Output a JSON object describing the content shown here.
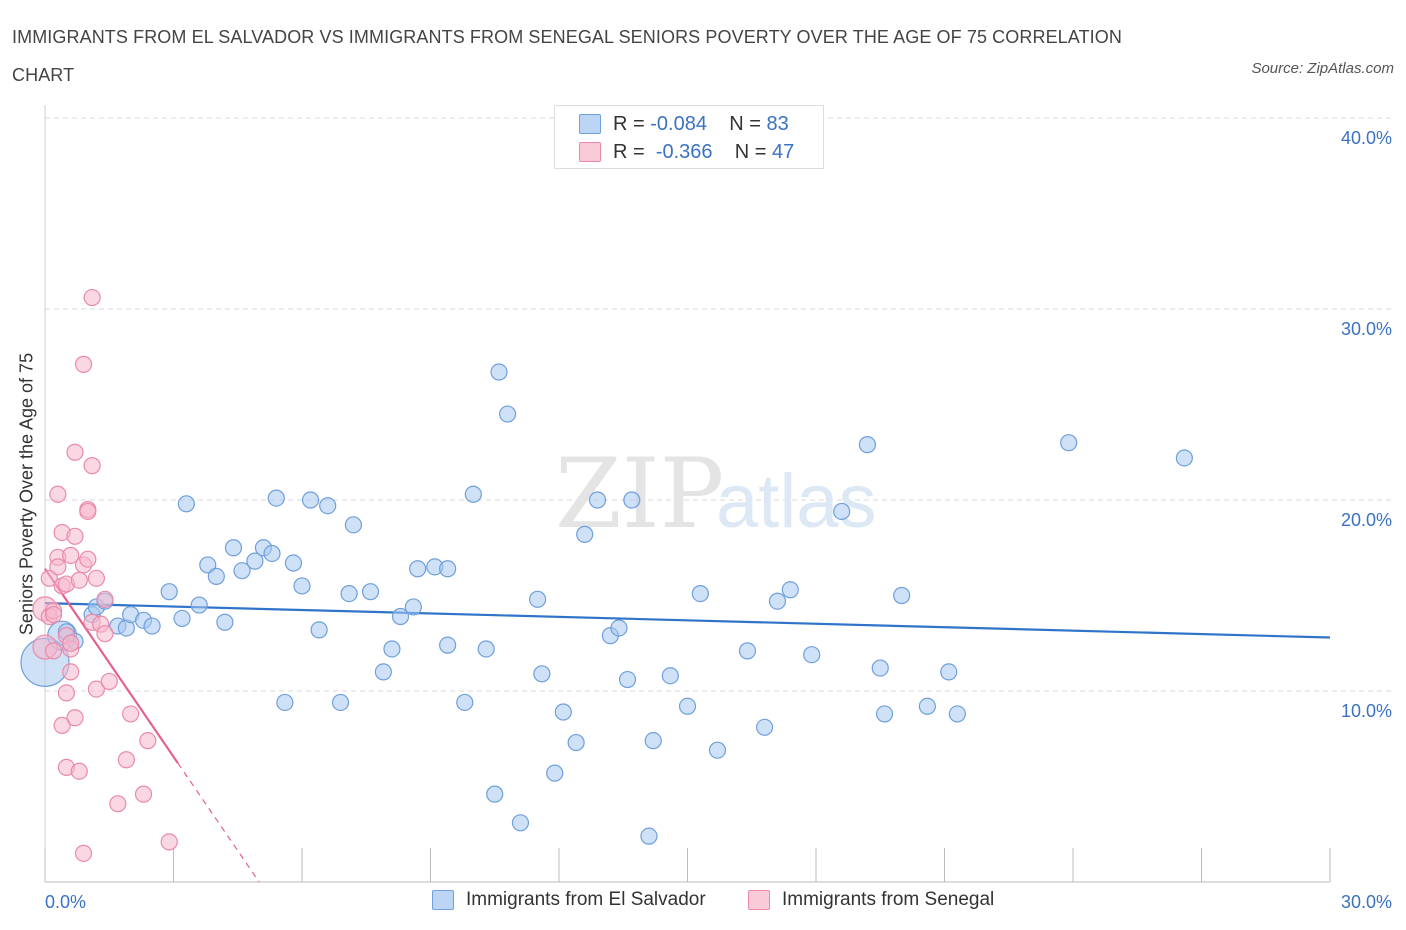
{
  "header": {
    "title": "IMMIGRANTS FROM EL SALVADOR VS IMMIGRANTS FROM SENEGAL SENIORS POVERTY OVER THE AGE OF 75 CORRELATION CHART",
    "source": "Source: ZipAtlas.com"
  },
  "legend_top": {
    "rows": [
      {
        "r_label": "R =",
        "r_value": "-0.084",
        "n_label": "N =",
        "n_value": "83"
      },
      {
        "r_label": "R =",
        "r_value": "-0.366",
        "n_label": "N =",
        "n_value": "47"
      }
    ]
  },
  "watermark": {
    "zip": "ZIP",
    "atlas": "atlas"
  },
  "colors": {
    "blue_fill": "#a8c8f0",
    "blue_stroke": "#6f9fdc",
    "blue_line": "#2f74c9",
    "pink_fill": "#f6b8cc",
    "pink_stroke": "#ea8aa9",
    "pink_line": "#e4618e",
    "axis_text": "#3a72c4",
    "grid": "#d8d8d8"
  },
  "chart_data": {
    "type": "scatter",
    "title": "IMMIGRANTS FROM EL SALVADOR VS IMMIGRANTS FROM SENEGAL SENIORS POVERTY OVER THE AGE OF 75 CORRELATION CHART",
    "xlabel": "",
    "ylabel": "Seniors Poverty Over the Age of 75",
    "xlim": [
      0,
      30
    ],
    "ylim": [
      0,
      40
    ],
    "x_tick_labels": [
      "0.0%",
      "30.0%"
    ],
    "y_tick_labels": [
      "10.0%",
      "20.0%",
      "30.0%",
      "40.0%"
    ],
    "y_ticks": [
      10,
      20,
      30,
      40
    ],
    "grid": true,
    "legend_position": "bottom",
    "series": [
      {
        "name": "Immigrants from El Salvador",
        "color": "#a8c8f0",
        "r": "-0.084",
        "n": "83",
        "trend": {
          "x1": 0.0,
          "y1": 14.6,
          "x2": 30.0,
          "y2": 12.8,
          "solid_to": 30.0
        },
        "points": [
          [
            0.0,
            11.5,
            3
          ],
          [
            0.4,
            12.9,
            1.8
          ],
          [
            0.5,
            13.1,
            1
          ],
          [
            0.7,
            12.6,
            1
          ],
          [
            1.1,
            14.0,
            1
          ],
          [
            1.2,
            14.4,
            1
          ],
          [
            1.4,
            14.7,
            1
          ],
          [
            1.7,
            13.4,
            1
          ],
          [
            1.9,
            13.3,
            1
          ],
          [
            2.0,
            14.0,
            1
          ],
          [
            2.3,
            13.7,
            1
          ],
          [
            2.5,
            13.4,
            1
          ],
          [
            2.9,
            15.2,
            1
          ],
          [
            3.2,
            13.8,
            1
          ],
          [
            3.3,
            19.8,
            1
          ],
          [
            3.6,
            14.5,
            1
          ],
          [
            3.8,
            16.6,
            1
          ],
          [
            4.0,
            16.0,
            1
          ],
          [
            4.2,
            13.6,
            1
          ],
          [
            4.4,
            17.5,
            1
          ],
          [
            4.6,
            16.3,
            1
          ],
          [
            4.9,
            16.8,
            1
          ],
          [
            5.1,
            17.5,
            1
          ],
          [
            5.3,
            17.2,
            1
          ],
          [
            5.4,
            20.1,
            1
          ],
          [
            5.6,
            9.4,
            1
          ],
          [
            5.8,
            16.7,
            1
          ],
          [
            6.0,
            15.5,
            1
          ],
          [
            6.2,
            20.0,
            1
          ],
          [
            6.4,
            13.2,
            1
          ],
          [
            6.6,
            19.7,
            1
          ],
          [
            6.9,
            9.4,
            1
          ],
          [
            7.1,
            15.1,
            1
          ],
          [
            7.2,
            18.7,
            1
          ],
          [
            7.6,
            15.2,
            1
          ],
          [
            7.9,
            11.0,
            1
          ],
          [
            8.1,
            12.2,
            1
          ],
          [
            8.3,
            13.9,
            1
          ],
          [
            8.6,
            14.4,
            1
          ],
          [
            8.7,
            16.4,
            1
          ],
          [
            9.1,
            16.5,
            1
          ],
          [
            9.4,
            16.4,
            1
          ],
          [
            9.4,
            12.4,
            1
          ],
          [
            9.8,
            9.4,
            1
          ],
          [
            10.0,
            20.3,
            1
          ],
          [
            10.3,
            12.2,
            1
          ],
          [
            10.5,
            4.6,
            1
          ],
          [
            10.6,
            26.7,
            1
          ],
          [
            10.8,
            24.5,
            1
          ],
          [
            11.1,
            3.1,
            1
          ],
          [
            11.5,
            14.8,
            1
          ],
          [
            11.6,
            10.9,
            1
          ],
          [
            11.9,
            5.7,
            1
          ],
          [
            12.1,
            8.9,
            1
          ],
          [
            12.4,
            7.3,
            1
          ],
          [
            12.6,
            18.2,
            1
          ],
          [
            12.9,
            20.0,
            1
          ],
          [
            13.2,
            12.9,
            1
          ],
          [
            13.4,
            13.3,
            1
          ],
          [
            13.6,
            10.6,
            1
          ],
          [
            13.7,
            20.0,
            1
          ],
          [
            14.1,
            2.4,
            1
          ],
          [
            14.2,
            7.4,
            1
          ],
          [
            14.6,
            10.8,
            1
          ],
          [
            15.0,
            9.2,
            1
          ],
          [
            15.3,
            15.1,
            1
          ],
          [
            15.7,
            6.9,
            1
          ],
          [
            16.4,
            12.1,
            1
          ],
          [
            16.8,
            8.1,
            1
          ],
          [
            17.1,
            14.7,
            1
          ],
          [
            17.4,
            15.3,
            1
          ],
          [
            17.9,
            11.9,
            1
          ],
          [
            18.6,
            19.4,
            1
          ],
          [
            19.2,
            22.9,
            1
          ],
          [
            19.5,
            11.2,
            1
          ],
          [
            19.6,
            8.8,
            1
          ],
          [
            20.0,
            15.0,
            1
          ],
          [
            20.6,
            9.2,
            1
          ],
          [
            21.1,
            11.0,
            1
          ],
          [
            21.3,
            8.8,
            1
          ],
          [
            23.9,
            23.0,
            1
          ],
          [
            26.6,
            22.2,
            1
          ]
        ]
      },
      {
        "name": "Immigrants from Senegal",
        "color": "#f6b8cc",
        "r": "-0.366",
        "n": "47",
        "trend": {
          "x1": 0.0,
          "y1": 16.4,
          "x2": 5.0,
          "y2": 0.0,
          "solid_to": 3.1
        },
        "points": [
          [
            0.0,
            14.3,
            1.5
          ],
          [
            0.0,
            12.3,
            1.5
          ],
          [
            0.1,
            15.9,
            1
          ],
          [
            0.1,
            13.9,
            1
          ],
          [
            0.2,
            14.2,
            1
          ],
          [
            0.2,
            14.0,
            1
          ],
          [
            0.2,
            12.1,
            1
          ],
          [
            0.3,
            17.0,
            1
          ],
          [
            0.3,
            20.3,
            1
          ],
          [
            0.3,
            16.5,
            1
          ],
          [
            0.4,
            15.5,
            1
          ],
          [
            0.4,
            8.2,
            1
          ],
          [
            0.4,
            18.3,
            1
          ],
          [
            0.5,
            12.9,
            1
          ],
          [
            0.5,
            9.9,
            1
          ],
          [
            0.5,
            6.0,
            1
          ],
          [
            0.5,
            15.6,
            1
          ],
          [
            0.6,
            12.2,
            1
          ],
          [
            0.6,
            17.1,
            1
          ],
          [
            0.6,
            11.0,
            1
          ],
          [
            0.7,
            22.5,
            1
          ],
          [
            0.7,
            18.1,
            1
          ],
          [
            0.7,
            8.6,
            1
          ],
          [
            0.8,
            15.8,
            1
          ],
          [
            0.8,
            5.8,
            1
          ],
          [
            0.9,
            16.6,
            1
          ],
          [
            0.9,
            27.1,
            1
          ],
          [
            0.9,
            1.5,
            1
          ],
          [
            1.0,
            19.5,
            1
          ],
          [
            1.0,
            19.4,
            1
          ],
          [
            1.0,
            16.9,
            1
          ],
          [
            1.1,
            21.8,
            1
          ],
          [
            1.1,
            30.6,
            1
          ],
          [
            1.1,
            13.6,
            1
          ],
          [
            1.2,
            15.9,
            1
          ],
          [
            1.2,
            10.1,
            1
          ],
          [
            1.3,
            13.5,
            1
          ],
          [
            1.4,
            14.8,
            1
          ],
          [
            1.5,
            10.5,
            1
          ],
          [
            1.7,
            4.1,
            1
          ],
          [
            1.9,
            6.4,
            1
          ],
          [
            2.0,
            8.8,
            1
          ],
          [
            2.3,
            4.6,
            1
          ],
          [
            2.4,
            7.4,
            1
          ],
          [
            2.9,
            2.1,
            1
          ],
          [
            0.6,
            12.5,
            1
          ],
          [
            1.4,
            13.0,
            1
          ]
        ]
      }
    ]
  }
}
